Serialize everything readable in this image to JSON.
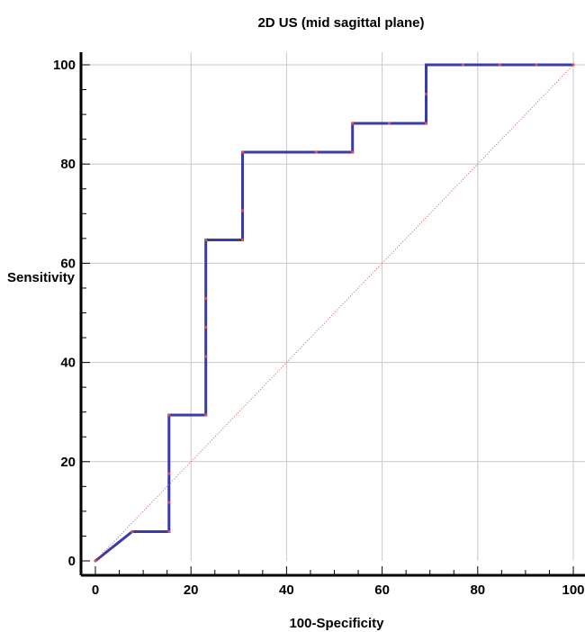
{
  "chart_data": {
    "type": "line",
    "title": "2D US (mid sagittal plane)",
    "xlabel": "100-Specificity",
    "ylabel": "Sensitivity",
    "xlim": [
      0,
      100
    ],
    "ylim": [
      0,
      100
    ],
    "xticks": [
      "0",
      "20",
      "40",
      "60",
      "80",
      "100"
    ],
    "yticks": [
      "0",
      "20",
      "40",
      "60",
      "80",
      "100"
    ],
    "grid": true,
    "series": [
      {
        "color": "#3a3aa8",
        "x": [
          0,
          7.7,
          15.4,
          15.4,
          23.1,
          23.1,
          30.8,
          30.8,
          53.8,
          53.8,
          69.2,
          69.2,
          100
        ],
        "y": [
          0,
          5.9,
          5.9,
          29.4,
          29.4,
          64.7,
          64.7,
          82.4,
          82.4,
          88.2,
          88.2,
          100,
          100
        ]
      },
      {
        "color": "#c06060",
        "style": "dotted",
        "x": [
          0,
          100
        ],
        "y": [
          0,
          100
        ]
      }
    ],
    "points": {
      "color": "#e05050",
      "x": [
        0,
        7.7,
        15.4,
        15.4,
        15.4,
        15.4,
        23.1,
        23.1,
        23.1,
        23.1,
        23.1,
        30.8,
        30.8,
        30.8,
        46.2,
        53.8,
        53.8,
        61.5,
        69.2,
        69.2,
        76.9,
        84.6,
        92.3,
        100
      ],
      "y": [
        0,
        5.9,
        5.9,
        11.8,
        17.6,
        29.4,
        29.4,
        41.2,
        47.1,
        52.9,
        64.7,
        64.7,
        70.6,
        82.4,
        82.4,
        82.4,
        88.2,
        88.2,
        88.2,
        94.1,
        100,
        100,
        100,
        100
      ]
    }
  }
}
